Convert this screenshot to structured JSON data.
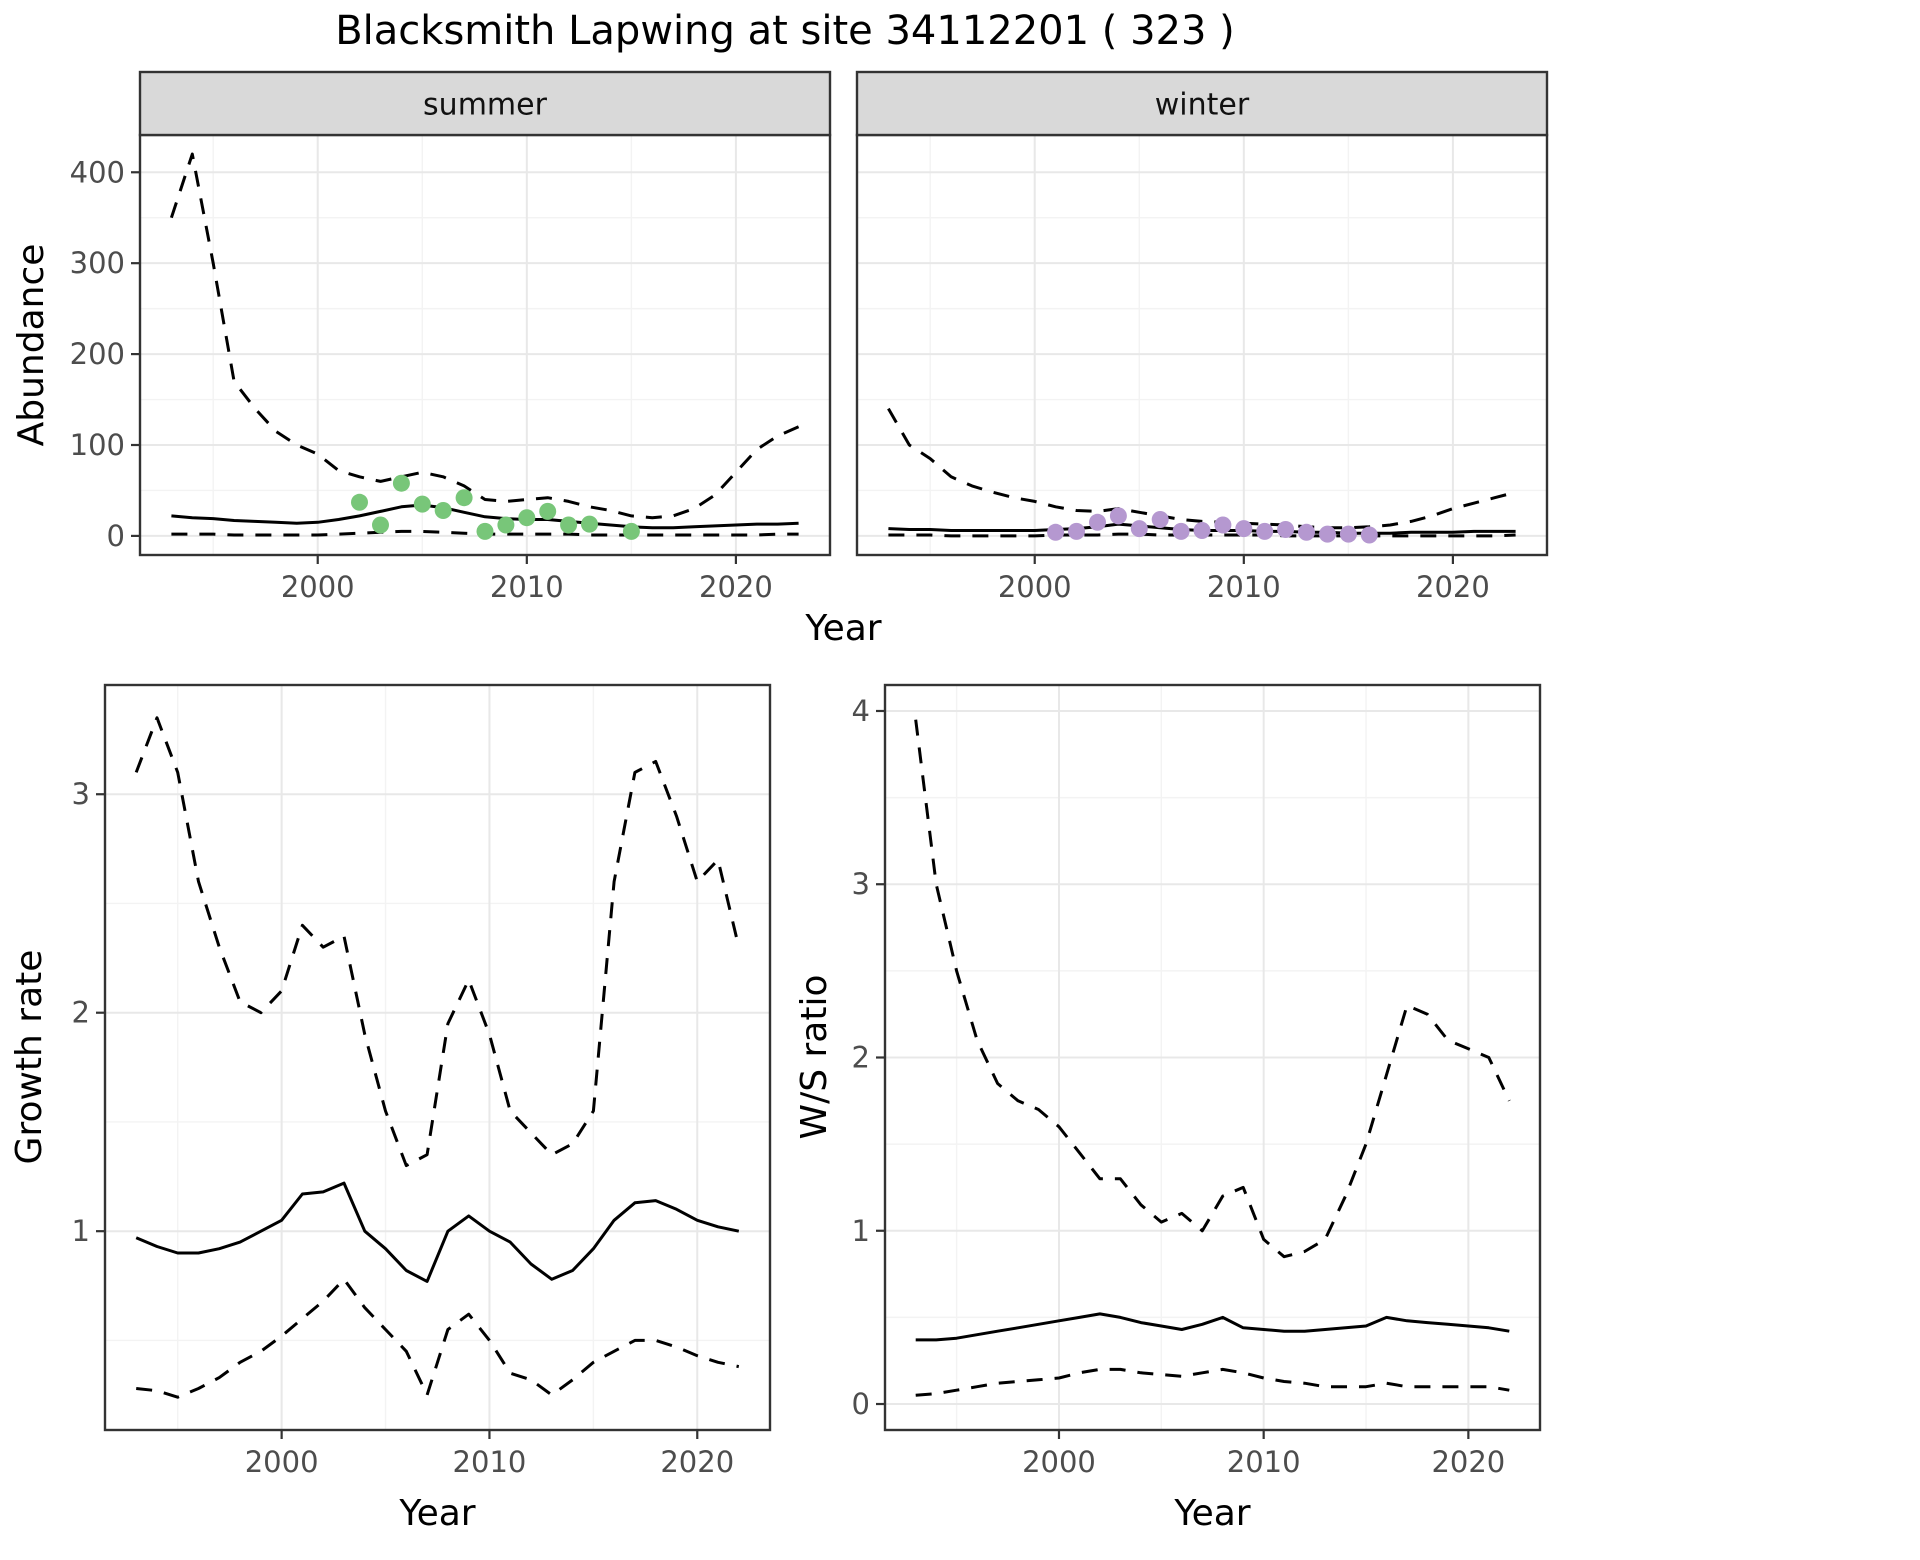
{
  "title": "Blacksmith Lapwing at site 34112201 ( 323 )",
  "axis_labels": {
    "abundance": "Abundance",
    "year_top": "Year",
    "growth_rate": "Growth rate",
    "ws_ratio": "W/S ratio",
    "year_bottom_left": "Year",
    "year_bottom_right": "Year"
  },
  "colors": {
    "summer_points": "#78c679",
    "winter_points": "#b598d0",
    "line": "#000000",
    "strip_bg": "#d9d9d9",
    "strip_text": "#111111",
    "panel_border": "#333333",
    "grid_major": "#e8e8e8",
    "grid_minor": "#f3f3f3",
    "tick_mark": "#333333",
    "tick_text": "#4d4d4d",
    "background": "#ffffff"
  },
  "chart_data": [
    {
      "id": "abundance-summer",
      "type": "line",
      "facet": "summer",
      "xlabel": "Year",
      "ylabel": "Abundance",
      "xlim": [
        1991.5,
        2024.5
      ],
      "ylim": [
        -21,
        441
      ],
      "xticks": [
        2000,
        2010,
        2020
      ],
      "yticks": [
        0,
        100,
        200,
        300,
        400
      ],
      "xticks_minor": [
        1995,
        2005,
        2015
      ],
      "yticks_minor": [
        50,
        150,
        250,
        350
      ],
      "x": [
        1993,
        1994,
        1995,
        1996,
        1997,
        1998,
        1999,
        2000,
        2001,
        2002,
        2003,
        2004,
        2005,
        2006,
        2007,
        2008,
        2009,
        2010,
        2011,
        2012,
        2013,
        2014,
        2015,
        2016,
        2017,
        2018,
        2019,
        2020,
        2021,
        2022,
        2023
      ],
      "series": [
        {
          "name": "upper_95ci",
          "style": "dashed",
          "values": [
            350,
            420,
            300,
            170,
            140,
            115,
            100,
            90,
            72,
            65,
            60,
            65,
            70,
            65,
            55,
            40,
            38,
            40,
            42,
            38,
            32,
            28,
            22,
            20,
            22,
            30,
            45,
            70,
            95,
            110,
            120
          ]
        },
        {
          "name": "mean",
          "style": "solid",
          "values": [
            22,
            20,
            19,
            17,
            16,
            15,
            14,
            15,
            18,
            22,
            27,
            32,
            34,
            31,
            26,
            21,
            19,
            18,
            18,
            16,
            14,
            12,
            10,
            9,
            9,
            10,
            11,
            12,
            13,
            13,
            14
          ]
        },
        {
          "name": "lower_95ci",
          "style": "dashed",
          "values": [
            2,
            2,
            2,
            1,
            1,
            1,
            1,
            1,
            2,
            3,
            4,
            5,
            5,
            4,
            3,
            2,
            2,
            2,
            2,
            2,
            1,
            1,
            1,
            1,
            1,
            1,
            1,
            1,
            1,
            2,
            2
          ]
        }
      ],
      "points": {
        "color": "#78c679",
        "x": [
          2002,
          2003,
          2004,
          2005,
          2006,
          2007,
          2008,
          2009,
          2010,
          2011,
          2012,
          2013,
          2015
        ],
        "y": [
          37,
          12,
          58,
          35,
          28,
          42,
          5,
          12,
          20,
          27,
          12,
          13,
          5
        ]
      }
    },
    {
      "id": "abundance-winter",
      "type": "line",
      "facet": "winter",
      "xlabel": "Year",
      "ylabel": "Abundance",
      "xlim": [
        1991.5,
        2024.5
      ],
      "ylim": [
        -21,
        441
      ],
      "xticks": [
        2000,
        2010,
        2020
      ],
      "yticks": [
        0,
        100,
        200,
        300,
        400
      ],
      "xticks_minor": [
        1995,
        2005,
        2015
      ],
      "yticks_minor": [
        50,
        150,
        250,
        350
      ],
      "x": [
        1993,
        1994,
        1995,
        1996,
        1997,
        1998,
        1999,
        2000,
        2001,
        2002,
        2003,
        2004,
        2005,
        2006,
        2007,
        2008,
        2009,
        2010,
        2011,
        2012,
        2013,
        2014,
        2015,
        2016,
        2017,
        2018,
        2019,
        2020,
        2021,
        2022,
        2023
      ],
      "series": [
        {
          "name": "upper_95ci",
          "style": "dashed",
          "values": [
            140,
            100,
            85,
            65,
            55,
            48,
            42,
            38,
            32,
            28,
            27,
            30,
            26,
            22,
            18,
            16,
            15,
            14,
            13,
            12,
            10,
            9,
            9,
            10,
            12,
            16,
            22,
            30,
            36,
            42,
            48
          ]
        },
        {
          "name": "mean",
          "style": "solid",
          "values": [
            8,
            7,
            7,
            6,
            6,
            6,
            6,
            6,
            7,
            8,
            10,
            13,
            11,
            9,
            7,
            6,
            6,
            6,
            5,
            5,
            4,
            4,
            3,
            3,
            3,
            4,
            4,
            4,
            5,
            5,
            5
          ]
        },
        {
          "name": "lower_95ci",
          "style": "dashed",
          "values": [
            1,
            1,
            1,
            0,
            0,
            0,
            0,
            0,
            1,
            1,
            1,
            2,
            2,
            1,
            1,
            1,
            1,
            1,
            1,
            0,
            0,
            0,
            0,
            0,
            0,
            0,
            0,
            0,
            0,
            0,
            1
          ]
        }
      ],
      "points": {
        "color": "#b598d0",
        "x": [
          2001,
          2002,
          2003,
          2004,
          2005,
          2006,
          2007,
          2008,
          2009,
          2010,
          2011,
          2012,
          2013,
          2014,
          2015,
          2016
        ],
        "y": [
          4,
          5,
          15,
          22,
          8,
          18,
          5,
          6,
          12,
          8,
          5,
          7,
          4,
          2,
          2,
          1
        ]
      }
    },
    {
      "id": "growth-rate",
      "type": "line",
      "xlabel": "Year",
      "ylabel": "Growth rate",
      "xlim": [
        1991.5,
        2023.5
      ],
      "ylim": [
        0.09,
        3.5
      ],
      "xticks": [
        2000,
        2010,
        2020
      ],
      "yticks": [
        1,
        2,
        3
      ],
      "xticks_minor": [
        1995,
        2005,
        2015
      ],
      "yticks_minor": [
        0.5,
        1.5,
        2.5
      ],
      "x": [
        1993,
        1994,
        1995,
        1996,
        1997,
        1998,
        1999,
        2000,
        2001,
        2002,
        2003,
        2004,
        2005,
        2006,
        2007,
        2008,
        2009,
        2010,
        2011,
        2012,
        2013,
        2014,
        2015,
        2016,
        2017,
        2018,
        2019,
        2020,
        2021,
        2022
      ],
      "series": [
        {
          "name": "upper_95ci",
          "style": "dashed",
          "values": [
            3.1,
            3.35,
            3.1,
            2.6,
            2.3,
            2.05,
            2.0,
            2.1,
            2.4,
            2.3,
            2.35,
            1.9,
            1.55,
            1.3,
            1.35,
            1.95,
            2.15,
            1.9,
            1.55,
            1.45,
            1.35,
            1.4,
            1.55,
            2.6,
            3.1,
            3.15,
            2.9,
            2.6,
            2.7,
            2.3
          ]
        },
        {
          "name": "mean",
          "style": "solid",
          "values": [
            0.97,
            0.93,
            0.9,
            0.9,
            0.92,
            0.95,
            1.0,
            1.05,
            1.17,
            1.18,
            1.22,
            1.0,
            0.92,
            0.82,
            0.77,
            1.0,
            1.07,
            1.0,
            0.95,
            0.85,
            0.78,
            0.82,
            0.92,
            1.05,
            1.13,
            1.14,
            1.1,
            1.05,
            1.02,
            1.0
          ]
        },
        {
          "name": "lower_95ci",
          "style": "dashed",
          "values": [
            0.28,
            0.27,
            0.24,
            0.28,
            0.33,
            0.4,
            0.45,
            0.52,
            0.6,
            0.68,
            0.78,
            0.65,
            0.55,
            0.45,
            0.25,
            0.55,
            0.62,
            0.5,
            0.35,
            0.32,
            0.25,
            0.32,
            0.4,
            0.45,
            0.5,
            0.5,
            0.47,
            0.43,
            0.4,
            0.38
          ]
        }
      ]
    },
    {
      "id": "ws-ratio",
      "type": "line",
      "xlabel": "Year",
      "ylabel": "W/S ratio",
      "xlim": [
        1991.5,
        2023.5
      ],
      "ylim": [
        -0.15,
        4.15
      ],
      "xticks": [
        2000,
        2010,
        2020
      ],
      "yticks": [
        0,
        1,
        2,
        3,
        4
      ],
      "xticks_minor": [
        1995,
        2005,
        2015
      ],
      "yticks_minor": [
        0.5,
        1.5,
        2.5,
        3.5
      ],
      "x": [
        1993,
        1994,
        1995,
        1996,
        1997,
        1998,
        1999,
        2000,
        2001,
        2002,
        2003,
        2004,
        2005,
        2006,
        2007,
        2008,
        2009,
        2010,
        2011,
        2012,
        2013,
        2014,
        2015,
        2016,
        2017,
        2018,
        2019,
        2020,
        2021,
        2022
      ],
      "series": [
        {
          "name": "upper_95ci",
          "style": "dashed",
          "values": [
            3.95,
            3.0,
            2.5,
            2.1,
            1.85,
            1.75,
            1.7,
            1.6,
            1.45,
            1.3,
            1.3,
            1.15,
            1.05,
            1.1,
            1.0,
            1.2,
            1.25,
            0.95,
            0.85,
            0.88,
            0.95,
            1.2,
            1.5,
            1.9,
            2.3,
            2.25,
            2.1,
            2.05,
            2.0,
            1.75
          ]
        },
        {
          "name": "mean",
          "style": "solid",
          "values": [
            0.37,
            0.37,
            0.38,
            0.4,
            0.42,
            0.44,
            0.46,
            0.48,
            0.5,
            0.52,
            0.5,
            0.47,
            0.45,
            0.43,
            0.46,
            0.5,
            0.44,
            0.43,
            0.42,
            0.42,
            0.43,
            0.44,
            0.45,
            0.5,
            0.48,
            0.47,
            0.46,
            0.45,
            0.44,
            0.42
          ]
        },
        {
          "name": "lower_95ci",
          "style": "dashed",
          "values": [
            0.05,
            0.06,
            0.08,
            0.1,
            0.12,
            0.13,
            0.14,
            0.15,
            0.18,
            0.2,
            0.2,
            0.18,
            0.17,
            0.16,
            0.18,
            0.2,
            0.18,
            0.15,
            0.13,
            0.12,
            0.1,
            0.1,
            0.1,
            0.12,
            0.1,
            0.1,
            0.1,
            0.1,
            0.1,
            0.08
          ]
        }
      ]
    }
  ]
}
